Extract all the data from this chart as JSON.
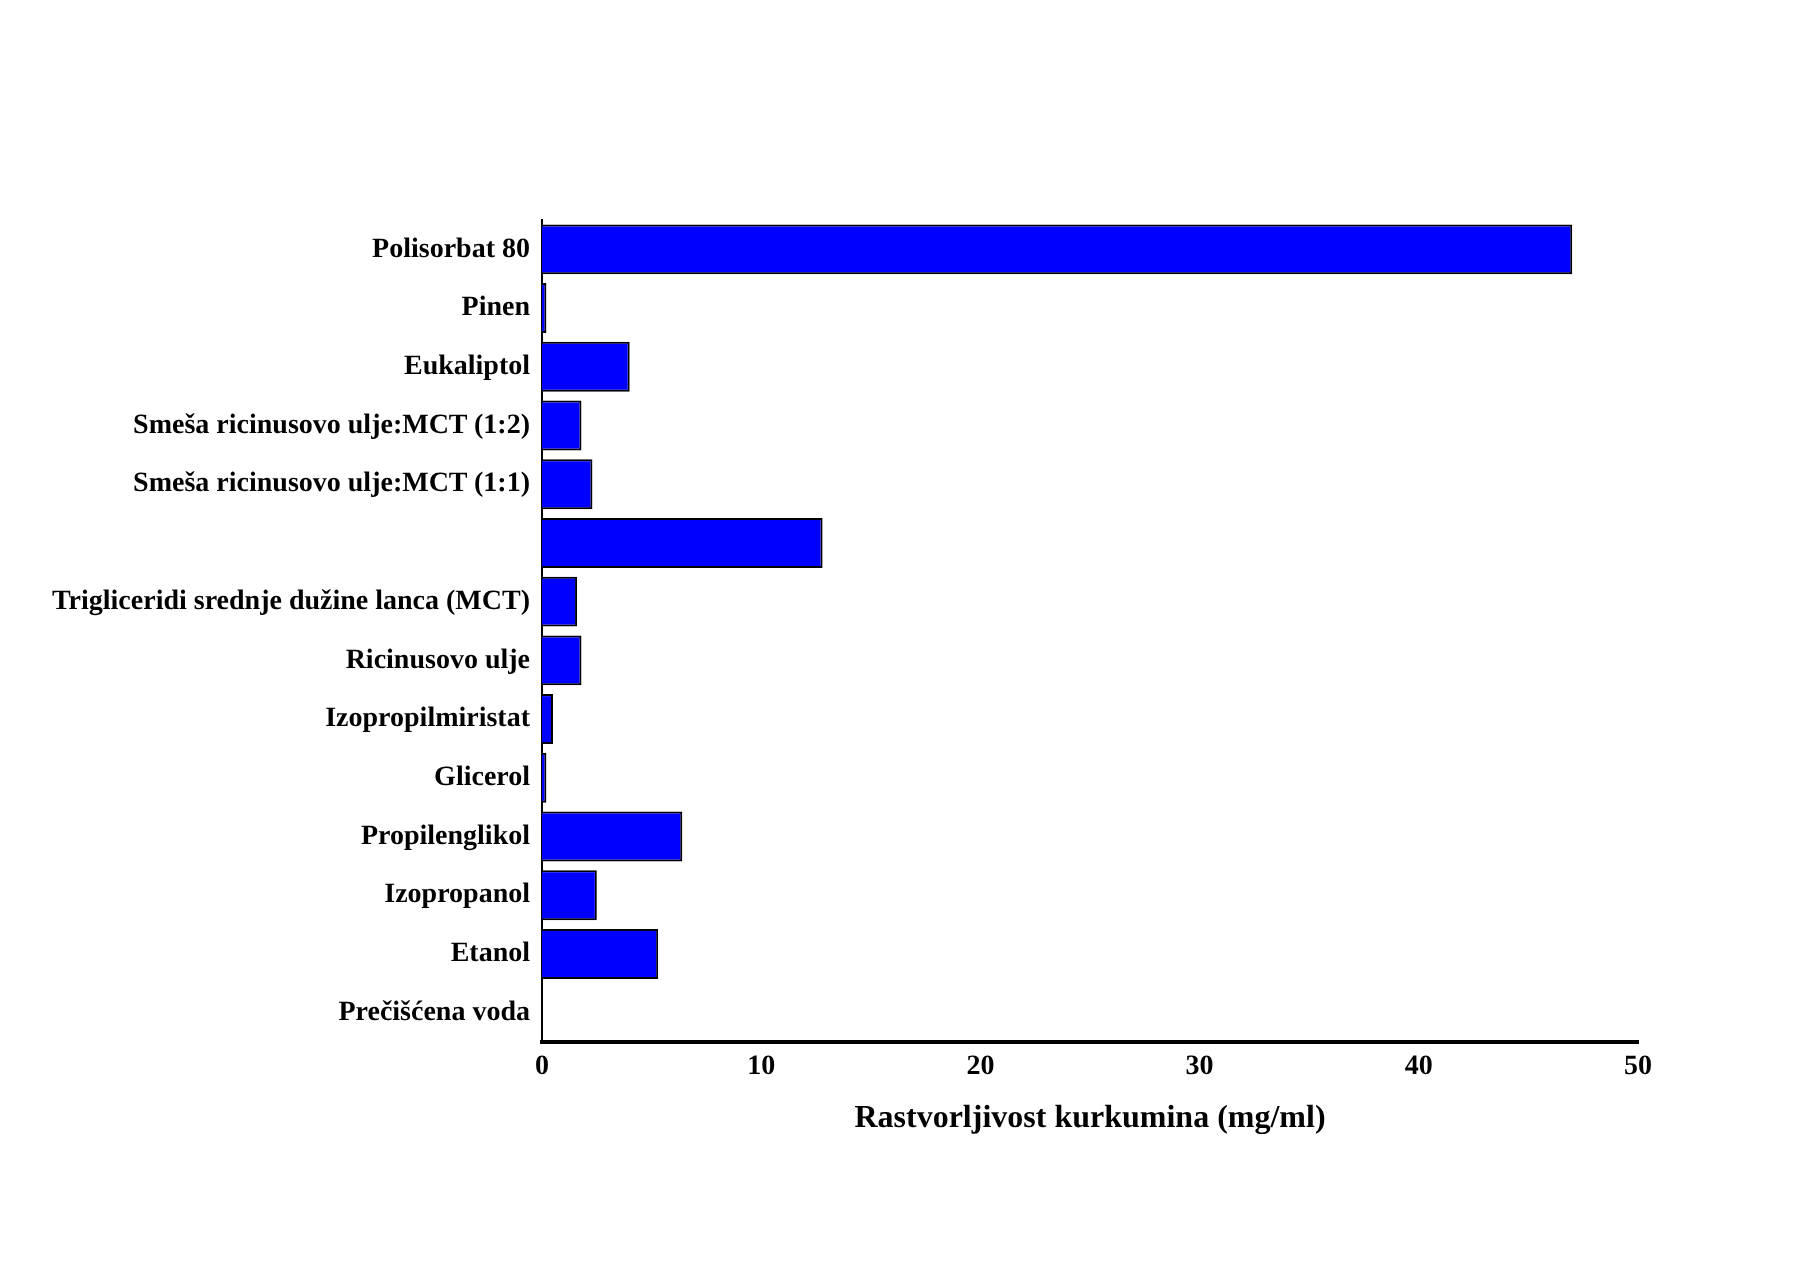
{
  "chart_data": {
    "type": "bar",
    "orientation": "horizontal",
    "xlabel": "Rastvorljivost kurkumina (mg/ml)",
    "categories": [
      "Polisorbat 80",
      "Pinen",
      "Eukaliptol",
      "Smeša ricinusovo ulje:MCT (1:2)",
      "Smeša ricinusovo ulje:MCT (1:1)",
      null,
      "Trigliceridi srednje dužine lanca (MCT)",
      "Ricinusovo ulje",
      "Izopropilmiristat",
      "Glicerol",
      "Propilenglikol",
      "Izopropanol",
      "Etanol",
      "Prečišćena voda"
    ],
    "values": [
      47,
      0.2,
      4.0,
      1.8,
      2.3,
      12.8,
      1.6,
      1.8,
      0.5,
      0.2,
      6.4,
      2.5,
      5.3,
      0
    ],
    "color": "#0000ff",
    "xlim": [
      0,
      50
    ],
    "xticks": [
      0,
      10,
      20,
      30,
      40,
      50
    ],
    "grid": false,
    "legend": false
  }
}
